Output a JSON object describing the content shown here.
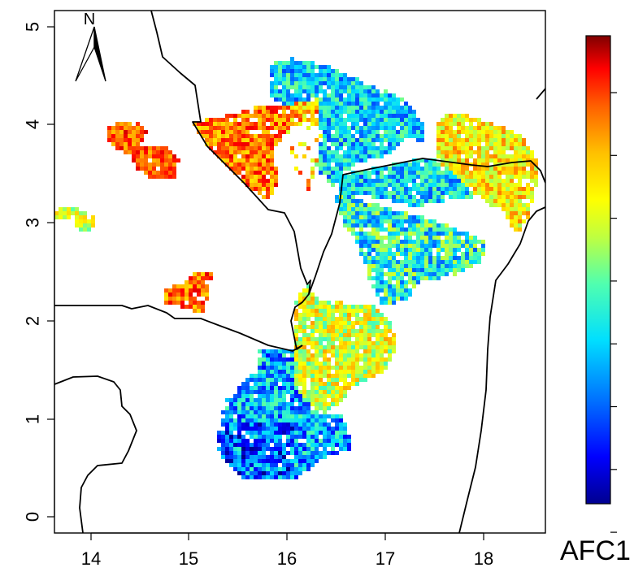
{
  "map": {
    "x_axis": {
      "ticks": [
        "14",
        "15",
        "16",
        "17",
        "18"
      ],
      "range": [
        13.63,
        18.62
      ]
    },
    "y_axis": {
      "ticks": [
        "0",
        "1",
        "2",
        "3",
        "4",
        "5"
      ],
      "range": [
        -0.15,
        5.18
      ]
    },
    "north_arrow": {
      "label": "N"
    },
    "border_color": "#000000",
    "background": "#ffffff"
  },
  "legend": {
    "title": "AFC1",
    "palette": [
      "#00008f",
      "#0000ff",
      "#0070ff",
      "#00dfff",
      "#50ffaf",
      "#bfff40",
      "#ffff00",
      "#ffc000",
      "#ff6000",
      "#ff0000",
      "#800000"
    ]
  }
}
